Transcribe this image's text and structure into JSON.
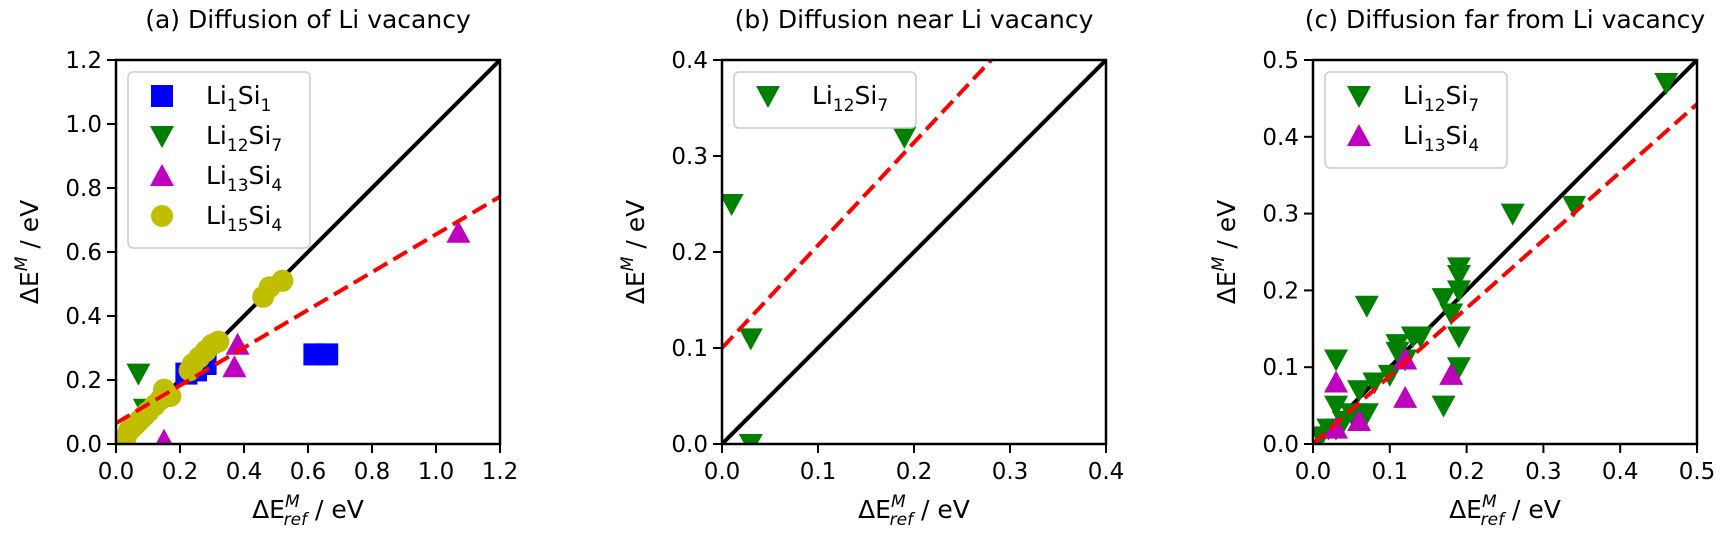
{
  "chart_data": [
    {
      "type": "scatter",
      "title": "(a) Diffusion of Li vacancy",
      "xlabel": {
        "main": "ΔE",
        "sup": "M",
        "sub": "ref",
        "unit": " / eV"
      },
      "ylabel": {
        "main": "ΔE",
        "sup": "M",
        "unit": " / eV"
      },
      "xlim": [
        0,
        1.2
      ],
      "ylim": [
        0,
        1.2
      ],
      "xticks": [
        "0.0",
        "0.2",
        "0.4",
        "0.6",
        "0.8",
        "1.0",
        "1.2"
      ],
      "yticks": [
        "0.0",
        "0.2",
        "0.4",
        "0.6",
        "0.8",
        "1.0",
        "1.2"
      ],
      "legend_position": "top-left",
      "identity_line": {
        "color": "#000000",
        "style": "solid"
      },
      "fit_line": {
        "color": "#ff0000",
        "style": "dashed",
        "intercept": 0.065,
        "slope": 0.59
      },
      "series": [
        {
          "name": {
            "base": "Li",
            "n1": "1",
            "mid": "Si",
            "n2": "1"
          },
          "marker": "square",
          "color": "#0000ff",
          "x": [
            0.22,
            0.25,
            0.28,
            0.62,
            0.66
          ],
          "y": [
            0.22,
            0.23,
            0.25,
            0.28,
            0.28
          ]
        },
        {
          "name": {
            "base": "Li",
            "n1": "12",
            "mid": "Si",
            "n2": "7"
          },
          "marker": "triangle-down",
          "color": "#008000",
          "x": [
            0.07,
            0.09
          ],
          "y": [
            0.22,
            0.11
          ]
        },
        {
          "name": {
            "base": "Li",
            "n1": "13",
            "mid": "Si",
            "n2": "4"
          },
          "marker": "triangle-up",
          "color": "#bf00bf",
          "x": [
            0.15,
            0.37,
            0.38,
            1.07
          ],
          "y": [
            0.01,
            0.24,
            0.31,
            0.66
          ]
        },
        {
          "name": {
            "base": "Li",
            "n1": "15",
            "mid": "Si",
            "n2": "4"
          },
          "marker": "circle",
          "color": "#bfbf00",
          "x": [
            0.03,
            0.04,
            0.05,
            0.06,
            0.07,
            0.08,
            0.09,
            0.1,
            0.12,
            0.14,
            0.15,
            0.17,
            0.23,
            0.24,
            0.26,
            0.28,
            0.3,
            0.32,
            0.46,
            0.48,
            0.52
          ],
          "y": [
            0.02,
            0.04,
            0.05,
            0.06,
            0.07,
            0.08,
            0.09,
            0.1,
            0.12,
            0.14,
            0.17,
            0.15,
            0.23,
            0.25,
            0.27,
            0.29,
            0.31,
            0.32,
            0.46,
            0.49,
            0.51
          ]
        }
      ]
    },
    {
      "type": "scatter",
      "title": "(b) Diffusion near Li vacancy",
      "xlabel": {
        "main": "ΔE",
        "sup": "M",
        "sub": "ref",
        "unit": " / eV"
      },
      "ylabel": {
        "main": "ΔE",
        "sup": "M",
        "unit": " / eV"
      },
      "xlim": [
        0,
        0.4
      ],
      "ylim": [
        0,
        0.4
      ],
      "xticks": [
        "0.0",
        "0.1",
        "0.2",
        "0.3",
        "0.4"
      ],
      "yticks": [
        "0.0",
        "0.1",
        "0.2",
        "0.3",
        "0.4"
      ],
      "legend_position": "top-left",
      "identity_line": {
        "color": "#000000",
        "style": "solid"
      },
      "fit_line": {
        "color": "#ff0000",
        "style": "dashed",
        "intercept": 0.1,
        "slope": 1.07
      },
      "series": [
        {
          "name": {
            "base": "Li",
            "n1": "12",
            "mid": "Si",
            "n2": "7"
          },
          "marker": "triangle-down",
          "color": "#008000",
          "x": [
            0.01,
            0.03,
            0.03,
            0.19
          ],
          "y": [
            0.25,
            0.11,
            0.0,
            0.32
          ]
        }
      ]
    },
    {
      "type": "scatter",
      "title": "(c) Diffusion far from Li vacancy",
      "xlabel": {
        "main": "ΔE",
        "sup": "M",
        "sub": "ref",
        "unit": " / eV"
      },
      "ylabel": {
        "main": "ΔE",
        "sup": "M",
        "unit": " / eV"
      },
      "xlim": [
        0,
        0.5
      ],
      "ylim": [
        0,
        0.5
      ],
      "xticks": [
        "0.0",
        "0.1",
        "0.2",
        "0.3",
        "0.4",
        "0.5"
      ],
      "yticks": [
        "0.0",
        "0.1",
        "0.2",
        "0.3",
        "0.4",
        "0.5"
      ],
      "legend_position": "top-left",
      "identity_line": {
        "color": "#000000",
        "style": "solid"
      },
      "fit_line": {
        "color": "#ff0000",
        "style": "dashed",
        "intercept": 0.0,
        "slope": 0.885
      },
      "series": [
        {
          "name": {
            "base": "Li",
            "n1": "12",
            "mid": "Si",
            "n2": "7"
          },
          "marker": "triangle-down",
          "color": "#008000",
          "x": [
            0.01,
            0.02,
            0.03,
            0.03,
            0.03,
            0.04,
            0.05,
            0.06,
            0.07,
            0.07,
            0.08,
            0.1,
            0.11,
            0.11,
            0.12,
            0.13,
            0.14,
            0.17,
            0.17,
            0.18,
            0.19,
            0.19,
            0.19,
            0.19,
            0.19,
            0.26,
            0.34,
            0.46
          ],
          "y": [
            0.01,
            0.02,
            0.02,
            0.05,
            0.11,
            0.03,
            0.04,
            0.07,
            0.04,
            0.18,
            0.08,
            0.09,
            0.12,
            0.13,
            0.11,
            0.14,
            0.14,
            0.05,
            0.19,
            0.17,
            0.1,
            0.14,
            0.2,
            0.22,
            0.23,
            0.3,
            0.31,
            0.47
          ]
        },
        {
          "name": {
            "base": "Li",
            "n1": "13",
            "mid": "Si",
            "n2": "4"
          },
          "marker": "triangle-up",
          "color": "#bf00bf",
          "x": [
            0.03,
            0.03,
            0.06,
            0.12,
            0.12,
            0.18
          ],
          "y": [
            0.02,
            0.08,
            0.03,
            0.06,
            0.11,
            0.09
          ]
        }
      ]
    }
  ]
}
